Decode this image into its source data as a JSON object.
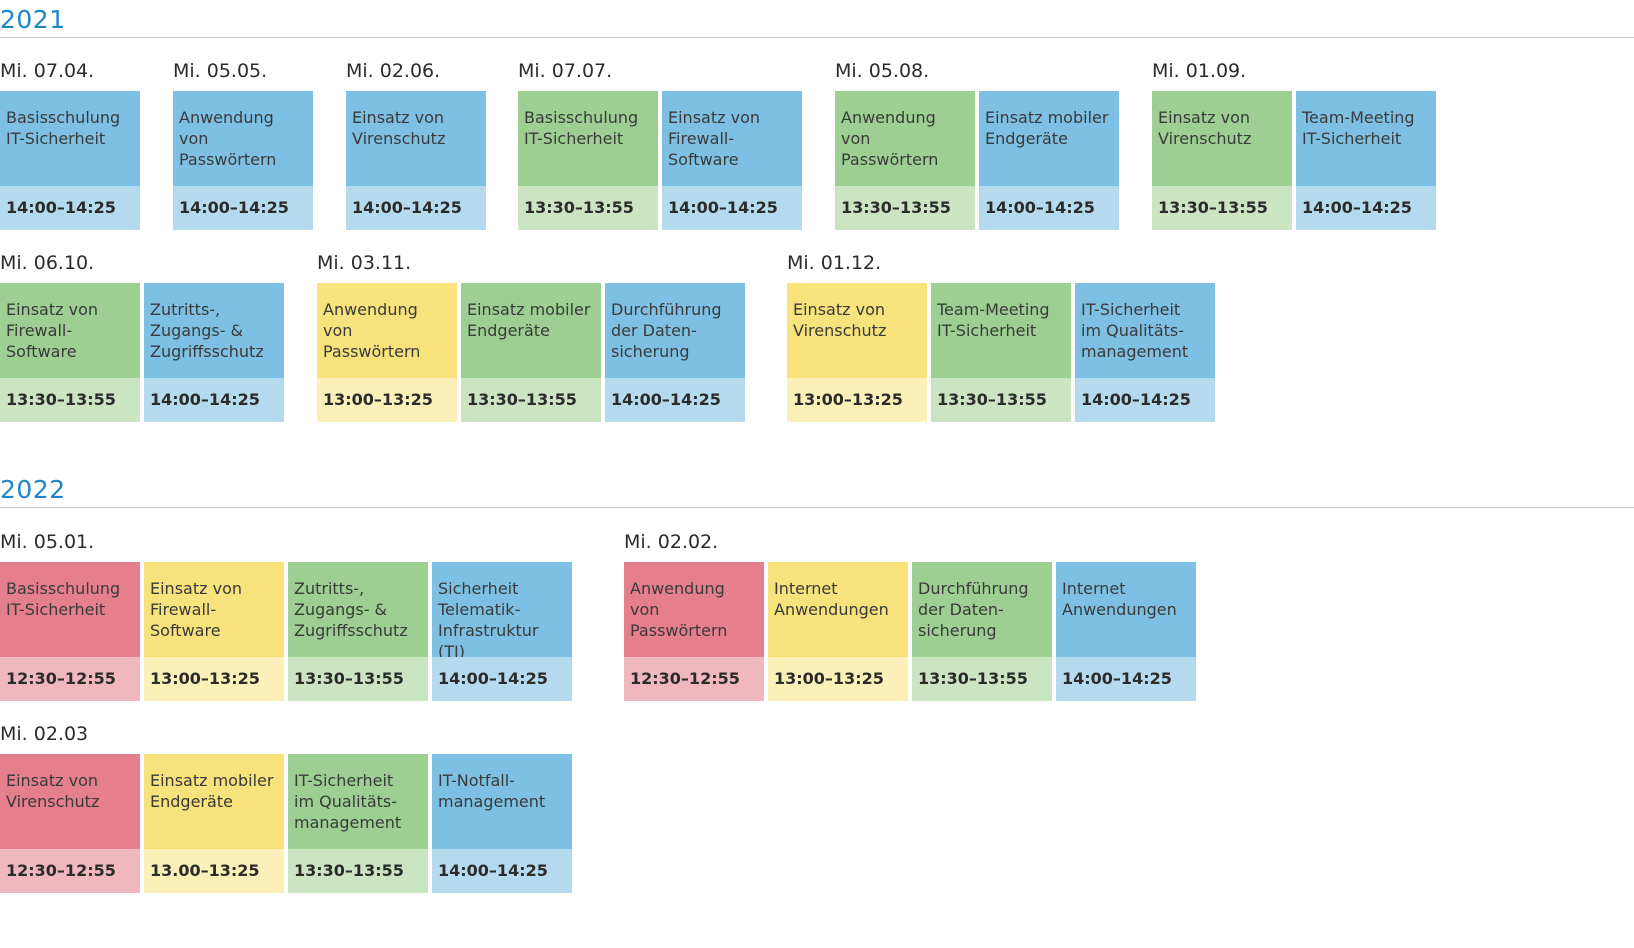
{
  "colors": {
    "blue": "#7ec0e4",
    "green": "#9ecf92",
    "yellow": "#f7e27c",
    "red": "#e67f8c",
    "year_accent": "#1e86c7"
  },
  "years": [
    {
      "label": "2021",
      "groups": [
        {
          "date": "Mi. 07.04.",
          "sessions": [
            {
              "title": "Basisschulung\nIT-Sicherheit",
              "time": "14:00–14:25",
              "color": "blue"
            }
          ]
        },
        {
          "date": "Mi. 05.05.",
          "sessions": [
            {
              "title": "Anwendung von\nPasswörtern",
              "time": "14:00–14:25",
              "color": "blue"
            }
          ]
        },
        {
          "date": "Mi. 02.06.",
          "sessions": [
            {
              "title": "Einsatz von\nVirenschutz",
              "time": "14:00–14:25",
              "color": "blue"
            }
          ]
        },
        {
          "date": "Mi. 07.07.",
          "sessions": [
            {
              "title": "Basisschulung\nIT-Sicherheit",
              "time": "13:30–13:55",
              "color": "green"
            },
            {
              "title": "Einsatz von\nFirewall-\nSoftware",
              "time": "14:00–14:25",
              "color": "blue"
            }
          ]
        },
        {
          "date": "Mi. 05.08.",
          "sessions": [
            {
              "title": "Anwendung von\nPasswörtern",
              "time": "13:30–13:55",
              "color": "green"
            },
            {
              "title": "Einsatz mobiler\nEndgeräte",
              "time": "14:00–14:25",
              "color": "blue"
            }
          ]
        },
        {
          "date": "Mi. 01.09.",
          "sessions": [
            {
              "title": "Einsatz von\nVirenschutz",
              "time": "13:30–13:55",
              "color": "green"
            },
            {
              "title": "Team-Meeting\nIT-Sicherheit",
              "time": "14:00–14:25",
              "color": "blue"
            }
          ]
        },
        {
          "date": "Mi. 06.10.",
          "sessions": [
            {
              "title": "Einsatz von\nFirewall-\nSoftware",
              "time": "13:30–13:55",
              "color": "green"
            },
            {
              "title": "Zutritts-,\nZugangs- &\nZugriffsschutz",
              "time": "14:00–14:25",
              "color": "blue"
            }
          ]
        },
        {
          "date": "Mi. 03.11.",
          "sessions": [
            {
              "title": "Anwendung von\nPasswörtern",
              "time": "13:00–13:25",
              "color": "yellow"
            },
            {
              "title": "Einsatz mobiler\nEndgeräte",
              "time": "13:30–13:55",
              "color": "green"
            },
            {
              "title": "Durchführung\nder Daten-\nsicherung",
              "time": "14:00–14:25",
              "color": "blue"
            }
          ]
        },
        {
          "date": "Mi. 01.12.",
          "sessions": [
            {
              "title": "Einsatz von\nVirenschutz",
              "time": "13:00–13:25",
              "color": "yellow"
            },
            {
              "title": "Team-Meeting\nIT-Sicherheit",
              "time": "13:30–13:55",
              "color": "green"
            },
            {
              "title": "IT-Sicherheit\nim Qualitäts-\nmanagement",
              "time": "14:00–14:25",
              "color": "blue"
            }
          ]
        }
      ]
    },
    {
      "label": "2022",
      "groups": [
        {
          "date": "Mi. 05.01.",
          "sessions": [
            {
              "title": "Basisschulung\nIT-Sicherheit",
              "time": "12:30–12:55",
              "color": "red"
            },
            {
              "title": "Einsatz von\nFirewall-\nSoftware",
              "time": "13:00–13:25",
              "color": "yellow"
            },
            {
              "title": "Zutritts-,\nZugangs- &\nZugriffsschutz",
              "time": "13:30–13:55",
              "color": "green"
            },
            {
              "title": "Sicherheit\nTelematik-\nInfrastruktur (TI)",
              "time": "14:00–14:25",
              "color": "blue"
            }
          ]
        },
        {
          "date": "Mi. 02.02.",
          "sessions": [
            {
              "title": "Anwendung von\nPasswörtern",
              "time": "12:30–12:55",
              "color": "red"
            },
            {
              "title": "Internet\nAnwendungen",
              "time": "13:00–13:25",
              "color": "yellow"
            },
            {
              "title": "Durchführung\nder Daten-\nsicherung",
              "time": "13:30–13:55",
              "color": "green"
            },
            {
              "title": "Internet\nAnwendungen",
              "time": "14:00–14:25",
              "color": "blue"
            }
          ]
        },
        {
          "date": "Mi. 02.03",
          "sessions": [
            {
              "title": "Einsatz von\nVirenschutz",
              "time": "12:30–12:55",
              "color": "red"
            },
            {
              "title": "Einsatz mobiler\nEndgeräte",
              "time": "13.00–13:25",
              "color": "yellow"
            },
            {
              "title": "IT-Sicherheit\nim Qualitäts-\nmanagement",
              "time": "13:30–13:55",
              "color": "green"
            },
            {
              "title": "IT-Notfall-\nmanagement",
              "time": "14:00–14:25",
              "color": "blue"
            }
          ]
        }
      ]
    }
  ]
}
